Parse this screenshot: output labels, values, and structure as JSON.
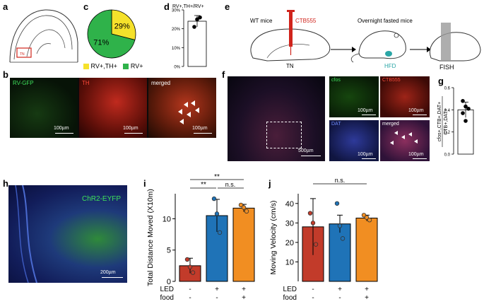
{
  "panel_labels": [
    "a",
    "b",
    "c",
    "d",
    "e",
    "f",
    "g",
    "h",
    "i",
    "j"
  ],
  "panel_c": {
    "legend": [
      "RV+,TH+",
      "RV+"
    ],
    "legend_colors": [
      "#f5e12b",
      "#2fb24a"
    ]
  },
  "panel_b": {
    "image_labels": [
      "RV-GFP",
      "TH",
      "merged"
    ],
    "scale": "100µm"
  },
  "panel_e": {
    "label_wt": "WT mice",
    "label_ctb": "CTB555",
    "label_tn": "TN",
    "label_fasted": "Overnight fasted mice",
    "label_hfd": "HFD",
    "label_fish": "FISH"
  },
  "panel_f": {
    "image_labels": [
      "cfos",
      "CTB555",
      "DAT",
      "merged"
    ],
    "scale_large": "500µm",
    "scale_small": "100µm"
  },
  "panel_h": {
    "image_label": "ChR2-EYFP",
    "scale": "200µm"
  },
  "chart_data": [
    {
      "panel": "c",
      "type": "pie",
      "categories": [
        "RV+,TH+",
        "RV+"
      ],
      "values": [
        29,
        71
      ],
      "data_labels": [
        "29%",
        "71%"
      ],
      "colors": [
        "#f5e12b",
        "#2fb24a"
      ]
    },
    {
      "panel": "d",
      "type": "bar",
      "title": "RV+,TH+/RV+",
      "ylim": [
        0,
        30
      ],
      "yticks": [
        "0%",
        "10%",
        "20%",
        "30%"
      ],
      "values": [
        24
      ],
      "error": 3,
      "points": [
        21,
        25,
        26
      ],
      "bar_color": "#ffffff"
    },
    {
      "panel": "g",
      "type": "bar",
      "ylabel_top": "cfos+,CTB+,DAT+",
      "ylabel_bottom": "CTB+,DAT+",
      "ylim": [
        0,
        0.6
      ],
      "yticks": [
        "0.0",
        "0.2",
        "0.4",
        "0.6"
      ],
      "values": [
        0.4
      ],
      "error": 0.07,
      "points": [
        0.48,
        0.43,
        0.41,
        0.37,
        0.3
      ],
      "bar_color": "#ffffff"
    },
    {
      "panel": "i",
      "type": "bar",
      "ylabel": "Total Distance Moved (X10m)",
      "ylim": [
        0,
        14
      ],
      "yticks": [
        "0",
        "5",
        "10"
      ],
      "values": [
        2.5,
        10.5,
        11.7
      ],
      "error": [
        1.2,
        2.6,
        0.6
      ],
      "points": [
        [
          3.5,
          2.3,
          1.4
        ],
        [
          13.2,
          10.8,
          7.8
        ],
        [
          12.2,
          11.8,
          11.2
        ]
      ],
      "colors": [
        "#c23b2a",
        "#1f73b7",
        "#f18e22"
      ],
      "led_row": [
        "-",
        "+",
        "+"
      ],
      "food_row": [
        "-",
        "-",
        "+"
      ],
      "row_label_led": "LED",
      "row_label_food": "food",
      "significance": [
        "**",
        "**",
        "n.s."
      ]
    },
    {
      "panel": "j",
      "type": "bar",
      "ylabel": "Moving Velocity (cm/s)",
      "ylim": [
        0,
        45
      ],
      "yticks": [
        "10",
        "20",
        "30",
        "40"
      ],
      "values": [
        28,
        29.5,
        32.5
      ],
      "error": [
        14.5,
        4.5,
        1.5
      ],
      "points": [
        [
          35,
          30,
          19
        ],
        [
          40,
          28.5,
          22
        ],
        [
          34,
          32.8,
          31.5
        ]
      ],
      "colors": [
        "#c23b2a",
        "#1f73b7",
        "#f18e22"
      ],
      "led_row": [
        "-",
        "+",
        "+"
      ],
      "food_row": [
        "-",
        "-",
        "+"
      ],
      "row_label_led": "LED",
      "row_label_food": "food",
      "significance": [
        "n.s."
      ]
    }
  ]
}
